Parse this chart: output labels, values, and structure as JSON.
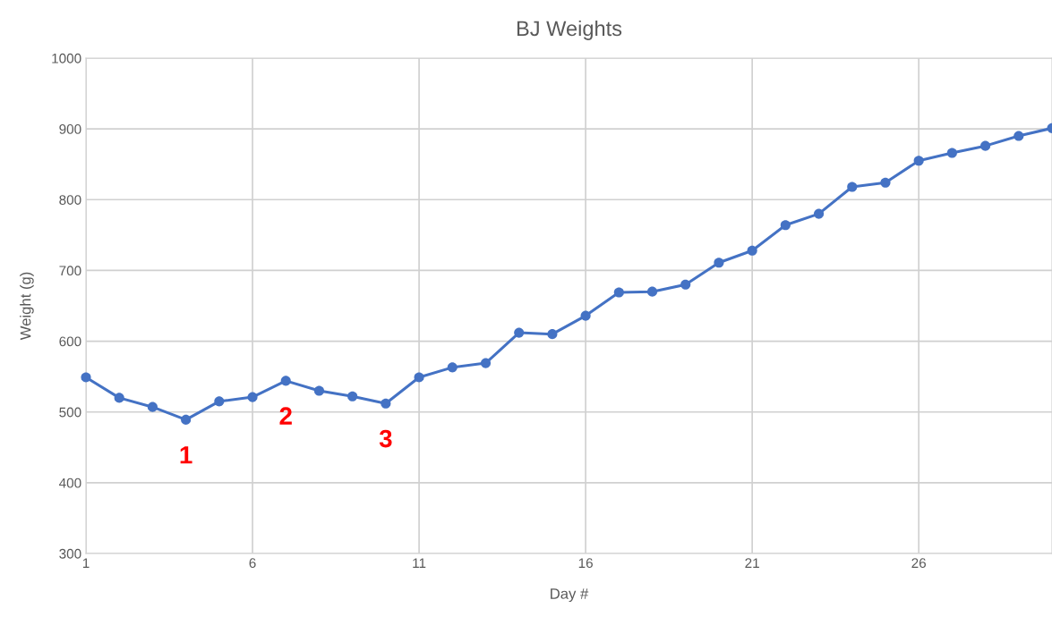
{
  "chart_data": {
    "type": "line",
    "title": "BJ Weights",
    "xlabel": "Day #",
    "ylabel": "Weight (g)",
    "x": [
      1,
      2,
      3,
      4,
      5,
      6,
      7,
      8,
      9,
      10,
      11,
      12,
      13,
      14,
      15,
      16,
      17,
      18,
      19,
      20,
      21,
      22,
      23,
      24,
      25,
      26,
      27,
      28,
      29,
      30
    ],
    "series": [
      {
        "color": "#4472c4",
        "values": [
          549,
          520,
          507,
          489,
          515,
          521,
          544,
          530,
          522,
          512,
          549,
          563,
          569,
          612,
          610,
          636,
          669,
          670,
          680,
          711,
          728,
          764,
          780,
          818,
          824,
          855,
          866,
          876,
          890,
          901
        ]
      }
    ],
    "xlim": [
      1,
      30
    ],
    "xticks": [
      1,
      6,
      11,
      16,
      21,
      26
    ],
    "ylim": [
      300,
      1000
    ],
    "yticks": [
      300,
      400,
      500,
      600,
      700,
      800,
      900,
      1000
    ],
    "grid": true,
    "marker": "circle",
    "line_style": "solid",
    "annotations": [
      {
        "text": "1",
        "x": 4,
        "y": 489
      },
      {
        "text": "2",
        "x": 7,
        "y": 544
      },
      {
        "text": "3",
        "x": 10,
        "y": 512
      }
    ]
  }
}
